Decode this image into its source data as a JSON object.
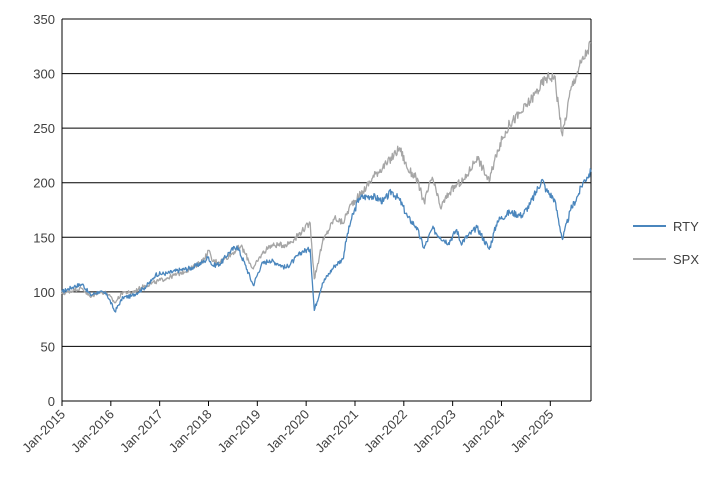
{
  "chart_data": {
    "type": "line",
    "title": "",
    "xlabel": "",
    "ylabel": "",
    "ylim": [
      0,
      350
    ],
    "yticks": [
      0,
      50,
      100,
      150,
      200,
      250,
      300,
      350
    ],
    "xlim": [
      "2015-01",
      "2025-11"
    ],
    "xticks": [
      "Jan-2015",
      "Jan-2016",
      "Jan-2017",
      "Jan-2018",
      "Jan-2019",
      "Jan-2020",
      "Jan-2021",
      "Jan-2022",
      "Jan-2023",
      "Jan-2024",
      "Jan-2025"
    ],
    "grid": "horizontal",
    "legend_position": "right",
    "series": [
      {
        "name": "RTY",
        "color": "#4a86bd",
        "points": [
          [
            "2015-01",
            100
          ],
          [
            "2015-04",
            105
          ],
          [
            "2015-06",
            107
          ],
          [
            "2015-08",
            97
          ],
          [
            "2015-10",
            100
          ],
          [
            "2015-12",
            98
          ],
          [
            "2016-02",
            82
          ],
          [
            "2016-04",
            95
          ],
          [
            "2016-06",
            96
          ],
          [
            "2016-09",
            103
          ],
          [
            "2016-11",
            110
          ],
          [
            "2016-12",
            116
          ],
          [
            "2017-03",
            117
          ],
          [
            "2017-06",
            120
          ],
          [
            "2017-09",
            122
          ],
          [
            "2017-12",
            128
          ],
          [
            "2018-01",
            132
          ],
          [
            "2018-02",
            124
          ],
          [
            "2018-04",
            126
          ],
          [
            "2018-06",
            136
          ],
          [
            "2018-08",
            142
          ],
          [
            "2018-10",
            125
          ],
          [
            "2018-12",
            106
          ],
          [
            "2019-02",
            125
          ],
          [
            "2019-04",
            129
          ],
          [
            "2019-06",
            126
          ],
          [
            "2019-08",
            122
          ],
          [
            "2019-10",
            129
          ],
          [
            "2019-12",
            137
          ],
          [
            "2020-02",
            139
          ],
          [
            "2020-03",
            83
          ],
          [
            "2020-05",
            108
          ],
          [
            "2020-08",
            124
          ],
          [
            "2020-10",
            130
          ],
          [
            "2020-11",
            150
          ],
          [
            "2020-12",
            165
          ],
          [
            "2021-02",
            186
          ],
          [
            "2021-05",
            188
          ],
          [
            "2021-08",
            183
          ],
          [
            "2021-10",
            192
          ],
          [
            "2021-12",
            184
          ],
          [
            "2022-02",
            168
          ],
          [
            "2022-04",
            160
          ],
          [
            "2022-06",
            140
          ],
          [
            "2022-08",
            158
          ],
          [
            "2022-10",
            150
          ],
          [
            "2022-12",
            145
          ],
          [
            "2023-02",
            157
          ],
          [
            "2023-03",
            145
          ],
          [
            "2023-07",
            159
          ],
          [
            "2023-10",
            139
          ],
          [
            "2023-12",
            165
          ],
          [
            "2024-03",
            173
          ],
          [
            "2024-06",
            170
          ],
          [
            "2024-08",
            180
          ],
          [
            "2024-11",
            203
          ],
          [
            "2024-12",
            193
          ],
          [
            "2025-02",
            185
          ],
          [
            "2025-04",
            148
          ],
          [
            "2025-06",
            175
          ],
          [
            "2025-08",
            190
          ],
          [
            "2025-09",
            200
          ],
          [
            "2025-10",
            205
          ],
          [
            "2025-11",
            210
          ]
        ]
      },
      {
        "name": "SPX",
        "color": "#a6a6a6",
        "points": [
          [
            "2015-01",
            98
          ],
          [
            "2015-04",
            102
          ],
          [
            "2015-06",
            103
          ],
          [
            "2015-08",
            95
          ],
          [
            "2015-10",
            100
          ],
          [
            "2015-12",
            99
          ],
          [
            "2016-02",
            90
          ],
          [
            "2016-04",
            100
          ],
          [
            "2016-06",
            99
          ],
          [
            "2016-09",
            105
          ],
          [
            "2016-12",
            109
          ],
          [
            "2017-03",
            113
          ],
          [
            "2017-06",
            117
          ],
          [
            "2017-09",
            122
          ],
          [
            "2017-12",
            130
          ],
          [
            "2018-01",
            138
          ],
          [
            "2018-02",
            128
          ],
          [
            "2018-04",
            128
          ],
          [
            "2018-06",
            133
          ],
          [
            "2018-09",
            142
          ],
          [
            "2018-12",
            121
          ],
          [
            "2019-02",
            134
          ],
          [
            "2019-04",
            142
          ],
          [
            "2019-06",
            143
          ],
          [
            "2019-08",
            143
          ],
          [
            "2019-10",
            148
          ],
          [
            "2019-12",
            156
          ],
          [
            "2020-02",
            163
          ],
          [
            "2020-03",
            112
          ],
          [
            "2020-05",
            145
          ],
          [
            "2020-08",
            168
          ],
          [
            "2020-10",
            163
          ],
          [
            "2020-12",
            180
          ],
          [
            "2021-03",
            192
          ],
          [
            "2021-06",
            208
          ],
          [
            "2021-09",
            218
          ],
          [
            "2021-12",
            232
          ],
          [
            "2022-02",
            212
          ],
          [
            "2022-04",
            205
          ],
          [
            "2022-06",
            182
          ],
          [
            "2022-08",
            205
          ],
          [
            "2022-10",
            177
          ],
          [
            "2022-12",
            190
          ],
          [
            "2023-02",
            198
          ],
          [
            "2023-04",
            203
          ],
          [
            "2023-07",
            224
          ],
          [
            "2023-10",
            201
          ],
          [
            "2023-12",
            230
          ],
          [
            "2024-03",
            254
          ],
          [
            "2024-06",
            265
          ],
          [
            "2024-09",
            280
          ],
          [
            "2024-12",
            296
          ],
          [
            "2025-02",
            298
          ],
          [
            "2025-04",
            243
          ],
          [
            "2025-06",
            285
          ],
          [
            "2025-08",
            305
          ],
          [
            "2025-10",
            320
          ],
          [
            "2025-11",
            328
          ]
        ]
      }
    ]
  }
}
